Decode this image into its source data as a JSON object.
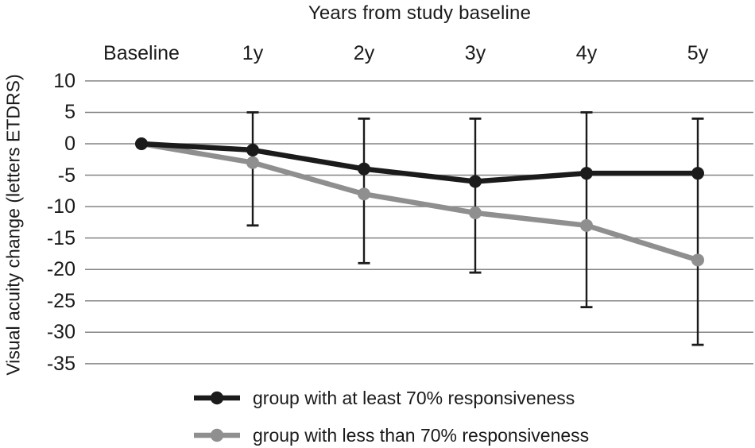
{
  "chart_data": {
    "type": "line",
    "title": "Years from study baseline",
    "xlabel": "",
    "ylabel": "Visual acuity change (letters ETDRS)",
    "categories": [
      "Baseline",
      "1y",
      "2y",
      "3y",
      "4y",
      "5y"
    ],
    "yticks": [
      10,
      5,
      0,
      -5,
      -10,
      -15,
      -20,
      -25,
      -30,
      -35
    ],
    "ylim": [
      -35,
      10
    ],
    "grid": "horizontal-only",
    "gridline_color": "#848484",
    "legend_position": "bottom",
    "error_bar_color": "#1b1b1b",
    "series": [
      {
        "name": "group with at least 70% responsiveness",
        "color": "#1b1b1b",
        "values": [
          0,
          -1,
          -4,
          -6,
          -4.7,
          -4.7
        ]
      },
      {
        "name": "group with less than 70% responsiveness",
        "color": "#8f8f8f",
        "values": [
          0,
          -3,
          -8,
          -11,
          -13,
          -18.5
        ]
      }
    ],
    "error_bars": [
      {
        "category": "1y",
        "high": 5,
        "low": -13
      },
      {
        "category": "2y",
        "high": 4,
        "low": -19
      },
      {
        "category": "3y",
        "high": 4,
        "low": -20.5
      },
      {
        "category": "4y",
        "high": 5,
        "low": -26
      },
      {
        "category": "5y",
        "high": 4,
        "low": -32
      }
    ]
  }
}
